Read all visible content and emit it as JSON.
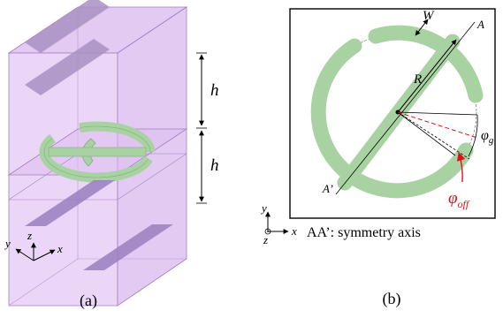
{
  "panel_a": {
    "caption": "(a)",
    "height_labels": [
      "h",
      "h"
    ],
    "axes": {
      "x": "x",
      "y": "y",
      "z": "z"
    }
  },
  "panel_b": {
    "caption": "(b)",
    "labels": {
      "width": "W",
      "radius": "R",
      "axis_end": "A",
      "axis_start": "A’",
      "gap_angle_symbol": "φ",
      "gap_angle_sub": "g",
      "offset_angle_symbol": "φ",
      "offset_angle_sub": "off",
      "symmetry_caption": "AA’: symmetry axis"
    },
    "axes": {
      "x": "x",
      "y": "y",
      "z": "z"
    }
  },
  "colors": {
    "cell_fill": "#e6c8f5",
    "cell_edge": "#a37fc0",
    "strip_fill": "#9a82b8",
    "ring_fill": "#a9d2a3",
    "ring_edge": "#7fae78",
    "offset_red": "#e0101a"
  }
}
